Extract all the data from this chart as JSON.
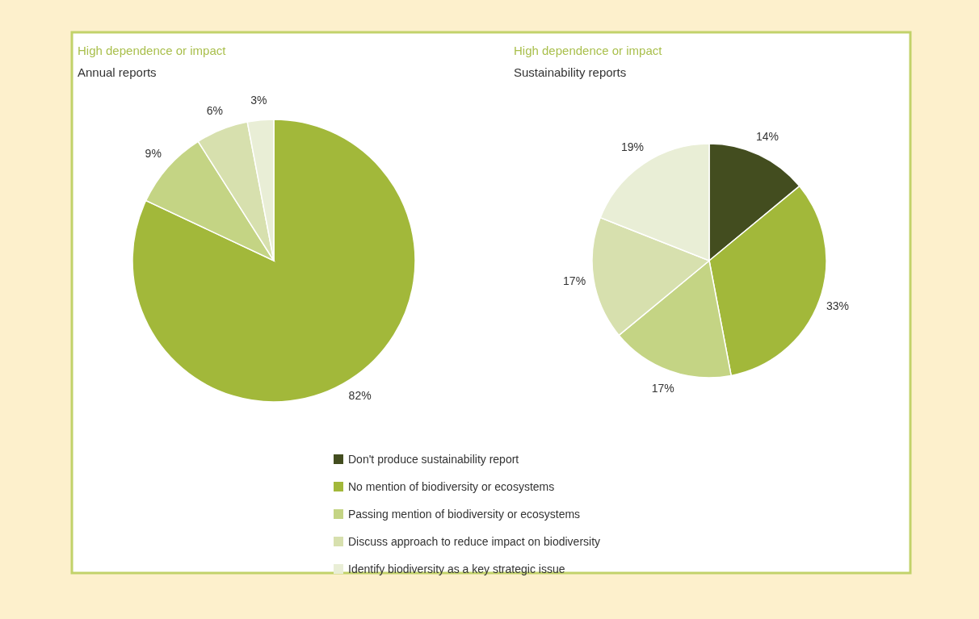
{
  "chart_data": [
    {
      "type": "pie",
      "title": "High dependence or impact",
      "subtitle": "Annual reports",
      "categories": [
        null,
        null,
        null,
        null
      ],
      "values": [
        82,
        9,
        6,
        3
      ],
      "value_labels": [
        "82%",
        "9%",
        "6%",
        "3%"
      ],
      "colors": [
        "#a2b83a",
        "#c4d484",
        "#d7e0ae",
        "#e9eed6"
      ]
    },
    {
      "type": "pie",
      "title": "High dependence or impact",
      "subtitle": "Sustainability reports",
      "categories": [
        "Don't produce sustainability report",
        "No mention of biodiversity or ecosystems",
        "Passing mention of biodiversity or ecosystems",
        "Discuss approach to reduce impact on biodiversity",
        "Identify biodiversity as a key strategic issue"
      ],
      "values": [
        14,
        33,
        17,
        17,
        19
      ],
      "value_labels": [
        "14%",
        "33%",
        "17%",
        "17%",
        "19%"
      ],
      "colors": [
        "#434d1f",
        "#a2b83a",
        "#c4d484",
        "#d7e0ae",
        "#e9eed6"
      ],
      "legend": "bottom"
    }
  ]
}
